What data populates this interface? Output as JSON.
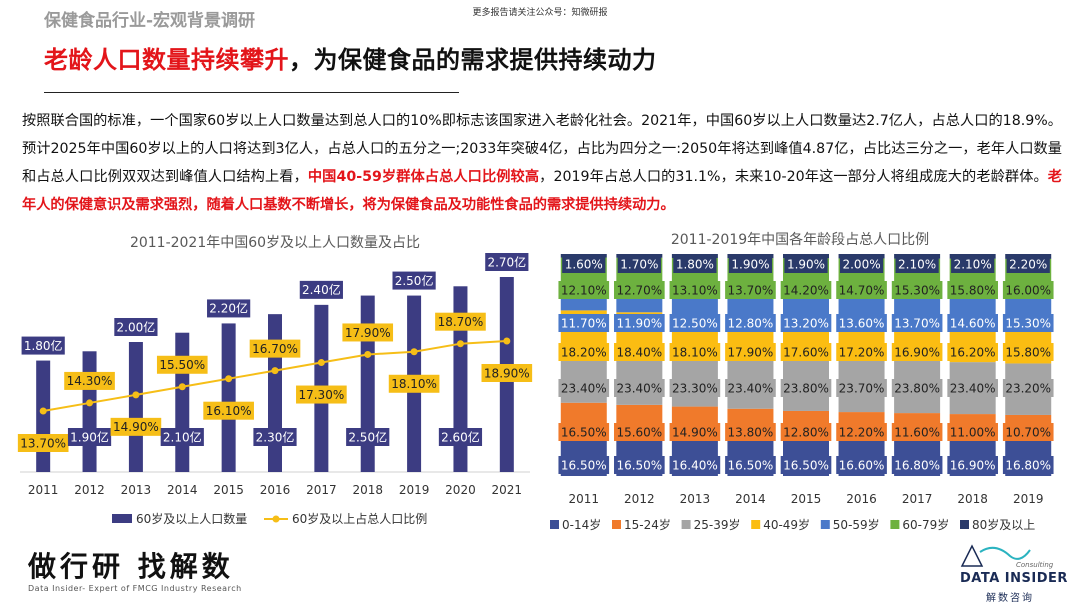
{
  "header": {
    "section": "保健食品行业-宏观背景调研",
    "note": "更多报告请关注公众号：知微研报",
    "title_red": "老龄人口数量持续攀升",
    "title_black": "，为保健食品的需求提供持续动力"
  },
  "intro": {
    "p1": "按照联合国的标准，一个国家60岁以上人口数量达到总人口的10%即标志该国家进入老龄化社会。2021年，中国60岁以上人口数量达2.7亿人，占总人口的18.9%。预计2025年中国60岁以上的人口将达到3亿人，占总人口的五分之一;2033年突破4亿，占比为四分之一:2050年将达到峰值4.87亿，占比达三分之一，老年人口数量和占总人口比例双双达到峰值人口结构上看，",
    "red1": "中国40-59岁群体占总人口比例较高",
    "p2": "，2019年占总人口的31.1%，未来10-20年这一部分人将组成庞大的老龄群体。",
    "red2": "老年人的保健意识及需求强烈，随着人口基数不断增长，将为保健食品及功能性食品的需求提供持续动力。"
  },
  "chart_data": [
    {
      "type": "bar",
      "title": "2011-2021年中国60岁及以上人口数量及占比",
      "categories": [
        "2011",
        "2012",
        "2013",
        "2014",
        "2015",
        "2016",
        "2017",
        "2018",
        "2019",
        "2020",
        "2021"
      ],
      "series": [
        {
          "name": "60岁及以上人口数量",
          "type": "bar",
          "values": [
            1.8,
            1.9,
            2.0,
            2.1,
            2.2,
            2.3,
            2.4,
            2.5,
            2.5,
            2.6,
            2.7
          ],
          "labels": [
            "1.80亿",
            "1.90亿",
            "2.00亿",
            "2.10亿",
            "2.20亿",
            "2.30亿",
            "2.40亿",
            "2.50亿",
            "2.50亿",
            "2.60亿",
            "2.70亿"
          ],
          "color": "#3c3c82"
        },
        {
          "name": "60岁及以上占总人口比例",
          "type": "line",
          "values": [
            13.7,
            14.3,
            14.9,
            15.5,
            16.1,
            16.7,
            17.3,
            17.9,
            18.1,
            18.7,
            18.9
          ],
          "labels": [
            "13.70%",
            "14.30%",
            "14.90%",
            "15.50%",
            "16.10%",
            "16.70%",
            "17.30%",
            "17.90%",
            "18.10%",
            "18.70%",
            "18.90%"
          ],
          "color": "#f6be17"
        }
      ]
    },
    {
      "type": "bar",
      "stacked": true,
      "title": "2011-2019年中国各年龄段占总人口比例",
      "categories": [
        "2011",
        "2012",
        "2013",
        "2014",
        "2015",
        "2016",
        "2017",
        "2018",
        "2019"
      ],
      "series": [
        {
          "name": "0-14岁",
          "color": "#3d4f96",
          "values": [
            16.5,
            16.5,
            16.4,
            16.5,
            16.5,
            16.6,
            16.8,
            16.9,
            16.8
          ],
          "labels": [
            "16.50%",
            "16.50%",
            "16.40%",
            "16.50%",
            "16.50%",
            "16.60%",
            "16.80%",
            "16.90%",
            "16.80%"
          ]
        },
        {
          "name": "15-24岁",
          "color": "#f07a2b",
          "values": [
            16.5,
            15.6,
            14.9,
            13.8,
            12.8,
            12.2,
            11.6,
            11.0,
            10.7
          ],
          "labels": [
            "16.50%",
            "15.60%",
            "14.90%",
            "13.80%",
            "12.80%",
            "12.20%",
            "11.60%",
            "11.00%",
            "10.70%"
          ]
        },
        {
          "name": "25-39岁",
          "color": "#a5a5a5",
          "values": [
            23.4,
            23.4,
            23.3,
            23.4,
            23.8,
            23.7,
            23.8,
            23.4,
            23.2
          ],
          "labels": [
            "23.40%",
            "23.40%",
            "23.30%",
            "23.40%",
            "23.80%",
            "23.70%",
            "23.80%",
            "23.40%",
            "23.20%"
          ]
        },
        {
          "name": "40-49岁",
          "color": "#fbbd12",
          "values": [
            18.2,
            18.4,
            18.1,
            17.9,
            17.6,
            17.2,
            16.9,
            16.2,
            15.8
          ],
          "labels": [
            "18.20%",
            "18.40%",
            "18.10%",
            "17.90%",
            "17.60%",
            "17.20%",
            "16.90%",
            "16.20%",
            "15.80%"
          ]
        },
        {
          "name": "50-59岁",
          "color": "#4a79c9",
          "values": [
            11.7,
            11.9,
            12.5,
            12.8,
            13.2,
            13.6,
            13.7,
            14.6,
            15.3
          ],
          "labels": [
            "11.70%",
            "11.90%",
            "12.50%",
            "12.80%",
            "13.20%",
            "13.60%",
            "13.70%",
            "14.60%",
            "15.30%"
          ]
        },
        {
          "name": "60-79岁",
          "color": "#6db13f",
          "values": [
            12.1,
            12.7,
            13.1,
            13.7,
            14.2,
            14.7,
            15.3,
            15.8,
            16.0
          ],
          "labels": [
            "12.10%",
            "12.70%",
            "13.10%",
            "13.70%",
            "14.20%",
            "14.70%",
            "15.30%",
            "15.80%",
            "16.00%"
          ]
        },
        {
          "name": "80岁及以上",
          "color": "#2a3a6a",
          "values": [
            1.6,
            1.7,
            1.8,
            1.9,
            1.9,
            2.0,
            2.1,
            2.1,
            2.2
          ],
          "labels": [
            "1.60%",
            "1.70%",
            "1.80%",
            "1.90%",
            "1.90%",
            "2.00%",
            "2.10%",
            "2.10%",
            "2.20%"
          ]
        }
      ]
    }
  ],
  "footer": {
    "brand_cn": "做行研 找解数",
    "brand_en": "Data Insider- Expert of FMCG Industry Research",
    "logo_consult": "Consulting",
    "logo_name": "DATA INSIDER",
    "logo_cn": "解数咨询"
  }
}
